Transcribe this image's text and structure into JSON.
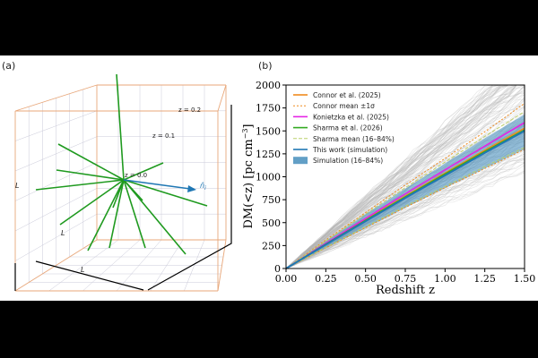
{
  "panel_a": {
    "label": "(a)",
    "z_labels": [
      "z = 0.2",
      "z = 0.1",
      "z = 0.0"
    ],
    "edge_label": "L",
    "direction_label": "n̂",
    "direction_subscript": "i",
    "colors": {
      "box": "#e8a77a",
      "grid": "#c9c9d8",
      "lines": "#1f9a1f",
      "arrow": "#1f77b4"
    }
  },
  "panel_b": {
    "label": "(b)",
    "colors": {
      "connor": "#f08a1e",
      "konietzka": "#e524e5",
      "sharma": "#33aa22",
      "sharma_mean": "#bcd06a",
      "this_work": "#1f77b4",
      "band": "#3b87b8",
      "background": "#b5b5b5"
    }
  },
  "chart_data": {
    "type": "line",
    "xlabel": "Redshift z",
    "ylabel": "DM(<z)  [pc cm",
    "ylabel_sup": "−3",
    "ylabel_end": "]",
    "xlim": [
      0,
      1.5
    ],
    "ylim": [
      0,
      2000
    ],
    "xticks": [
      "0.00",
      "0.25",
      "0.50",
      "0.75",
      "1.00",
      "1.25",
      "1.50"
    ],
    "xtick_values": [
      0,
      0.25,
      0.5,
      0.75,
      1.0,
      1.25,
      1.5
    ],
    "yticks": [
      "0",
      "250",
      "500",
      "750",
      "1000",
      "1250",
      "1500",
      "1750",
      "2000"
    ],
    "ytick_values": [
      0,
      250,
      500,
      750,
      1000,
      1250,
      1500,
      1750,
      2000
    ],
    "grid": false,
    "legend_position": "top-left",
    "x": [
      0,
      0.25,
      0.5,
      0.75,
      1.0,
      1.25,
      1.5
    ],
    "series": [
      {
        "name": "Connor et al. (2025)",
        "style": "solid",
        "color_key": "connor",
        "values": [
          0,
          270,
          530,
          790,
          1040,
          1290,
          1530
        ]
      },
      {
        "name": "Connor mean ±1σ",
        "style": "dotted",
        "color_key": "connor",
        "values_upper": [
          0,
          310,
          610,
          910,
          1200,
          1490,
          1800
        ],
        "values_lower": [
          0,
          225,
          445,
          665,
          880,
          1090,
          1300
        ]
      },
      {
        "name": "Konietzka et al. (2025)",
        "style": "solid",
        "color_key": "konietzka",
        "values": [
          0,
          275,
          545,
          815,
          1075,
          1335,
          1590
        ]
      },
      {
        "name": "Sharma et al. (2026)",
        "style": "solid",
        "color_key": "sharma",
        "values": [
          0,
          265,
          525,
          780,
          1030,
          1275,
          1510
        ]
      },
      {
        "name": "Sharma mean (16–84%)",
        "style": "dashed",
        "color_key": "sharma_mean",
        "values_upper": [
          0,
          300,
          595,
          880,
          1160,
          1440,
          1710
        ],
        "values_lower": [
          0,
          230,
          455,
          680,
          895,
          1110,
          1320
        ]
      },
      {
        "name": "This work (simulation)",
        "style": "solid",
        "color_key": "this_work",
        "values": [
          0,
          260,
          515,
          770,
          1015,
          1260,
          1500
        ]
      },
      {
        "name": "Simulation (16–84%)",
        "style": "band",
        "color_key": "band",
        "values_upper": [
          0,
          300,
          590,
          870,
          1145,
          1420,
          1680
        ],
        "values_lower": [
          0,
          220,
          440,
          660,
          875,
          1090,
          1300
        ]
      }
    ]
  }
}
